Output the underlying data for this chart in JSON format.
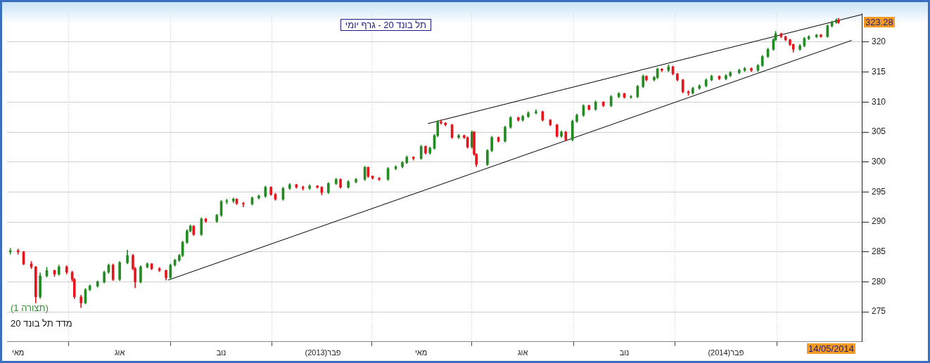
{
  "chart_data": {
    "type": "candlestick",
    "title": "תל בונד 20 - גרף יומי",
    "x": [
      "2012-04-24",
      "2012-05-01",
      "2012-05-06",
      "2012-05-13",
      "2012-05-17",
      "2012-05-21",
      "2012-05-27",
      "2012-06-03",
      "2012-06-07",
      "2012-06-14",
      "2012-06-19",
      "2012-06-21",
      "2012-06-27",
      "2012-07-01",
      "2012-07-05",
      "2012-07-12",
      "2012-07-18",
      "2012-07-22",
      "2012-07-26",
      "2012-08-01",
      "2012-08-08",
      "2012-08-13",
      "2012-08-15",
      "2012-08-20",
      "2012-08-26",
      "2012-08-30",
      "2012-09-06",
      "2012-09-12",
      "2012-09-16",
      "2012-09-20",
      "2012-09-24",
      "2012-09-27",
      "2012-10-01",
      "2012-10-04",
      "2012-10-07",
      "2012-10-14",
      "2012-10-18",
      "2012-10-28",
      "2012-11-01",
      "2012-11-06",
      "2012-11-12",
      "2012-11-15",
      "2012-11-21",
      "2012-11-29",
      "2012-12-05",
      "2012-12-11",
      "2012-12-16",
      "2012-12-20",
      "2012-12-27",
      "2013-01-02",
      "2013-01-08",
      "2013-01-14",
      "2013-01-20",
      "2013-01-27",
      "2013-01-31",
      "2013-02-06",
      "2013-02-13",
      "2013-02-17",
      "2013-02-24",
      "2013-03-03",
      "2013-03-11",
      "2013-03-14",
      "2013-03-18",
      "2013-03-24",
      "2013-04-01",
      "2013-04-08",
      "2013-04-14",
      "2013-04-18",
      "2013-04-24",
      "2013-05-01",
      "2013-05-05",
      "2013-05-09",
      "2013-05-13",
      "2013-05-16",
      "2013-05-19",
      "2013-05-23",
      "2013-05-29",
      "2013-06-04",
      "2013-06-09",
      "2013-06-12",
      "2013-06-16",
      "2013-06-18",
      "2013-06-20",
      "2013-06-30",
      "2013-07-04",
      "2013-07-10",
      "2013-07-16",
      "2013-07-21",
      "2013-07-28",
      "2013-08-01",
      "2013-08-06",
      "2013-08-13",
      "2013-08-19",
      "2013-08-26",
      "2013-09-01",
      "2013-09-05",
      "2013-09-09",
      "2013-09-15",
      "2013-09-19",
      "2013-09-25",
      "2013-09-30",
      "2013-10-06",
      "2013-10-13",
      "2013-10-20",
      "2013-10-27",
      "2013-11-01",
      "2013-11-07",
      "2013-11-13",
      "2013-11-18",
      "2013-11-21",
      "2013-11-28",
      "2013-12-01",
      "2013-12-05",
      "2013-12-11",
      "2013-12-15",
      "2013-12-19",
      "2013-12-24",
      "2013-12-29",
      "2014-01-02",
      "2014-01-08",
      "2014-01-14",
      "2014-01-19",
      "2014-01-26",
      "2014-02-01",
      "2014-02-05",
      "2014-02-13",
      "2014-02-18",
      "2014-02-24",
      "2014-03-02",
      "2014-03-06",
      "2014-03-11",
      "2014-03-16",
      "2014-03-18",
      "2014-03-23",
      "2014-03-27",
      "2014-03-31",
      "2014-04-03",
      "2014-04-09",
      "2014-04-13",
      "2014-04-17",
      "2014-04-24",
      "2014-04-28",
      "2014-05-04",
      "2014-05-08",
      "2014-05-12",
      "2014-05-14"
    ],
    "ohlc": [
      [
        285.0,
        285.6,
        284.6,
        285.2
      ],
      [
        285.2,
        285.5,
        284.6,
        285.0
      ],
      [
        285.0,
        285.1,
        282.8,
        283.0
      ],
      [
        283.0,
        283.4,
        282.2,
        282.5
      ],
      [
        282.5,
        282.6,
        276.5,
        277.5
      ],
      [
        277.5,
        281.5,
        277.2,
        281.0
      ],
      [
        281.0,
        282.4,
        280.8,
        281.9
      ],
      [
        281.9,
        282.0,
        280.9,
        281.3
      ],
      [
        281.3,
        282.8,
        281.1,
        282.5
      ],
      [
        282.5,
        282.7,
        281.3,
        281.6
      ],
      [
        281.6,
        281.8,
        280.1,
        280.4
      ],
      [
        280.4,
        280.6,
        277.2,
        277.5
      ],
      [
        277.5,
        277.8,
        275.7,
        276.5
      ],
      [
        276.5,
        278.9,
        276.3,
        278.7
      ],
      [
        278.7,
        279.5,
        278.5,
        279.3
      ],
      [
        279.3,
        280.2,
        279.1,
        280.0
      ],
      [
        280.0,
        281.8,
        279.8,
        281.6
      ],
      [
        281.6,
        283.0,
        281.4,
        282.8
      ],
      [
        282.8,
        283.0,
        280.2,
        280.4
      ],
      [
        280.4,
        283.4,
        280.2,
        283.2
      ],
      [
        283.2,
        285.3,
        283.0,
        284.4
      ],
      [
        284.4,
        284.6,
        282.0,
        282.2
      ],
      [
        282.2,
        282.4,
        279.0,
        280.0
      ],
      [
        280.0,
        282.7,
        279.8,
        282.5
      ],
      [
        282.5,
        283.2,
        282.3,
        283.0
      ],
      [
        283.0,
        283.1,
        282.0,
        282.2
      ],
      [
        282.2,
        282.4,
        281.7,
        281.9
      ],
      [
        281.9,
        282.0,
        280.3,
        280.7
      ],
      [
        280.7,
        283.0,
        280.5,
        282.8
      ],
      [
        282.8,
        283.8,
        282.6,
        283.6
      ],
      [
        283.6,
        284.6,
        283.4,
        284.4
      ],
      [
        284.4,
        286.8,
        284.2,
        286.6
      ],
      [
        286.6,
        288.7,
        286.4,
        288.5
      ],
      [
        288.5,
        289.5,
        288.3,
        289.3
      ],
      [
        289.3,
        289.4,
        287.7,
        287.9
      ],
      [
        287.9,
        290.7,
        287.7,
        290.5
      ],
      [
        290.5,
        290.6,
        289.9,
        290.1
      ],
      [
        290.1,
        291.3,
        289.9,
        291.1
      ],
      [
        291.1,
        293.6,
        290.9,
        293.4
      ],
      [
        293.4,
        293.8,
        293.0,
        293.5
      ],
      [
        293.5,
        294.0,
        293.2,
        293.8
      ],
      [
        293.8,
        293.9,
        292.9,
        293.1
      ],
      [
        293.1,
        293.3,
        292.5,
        293.0
      ],
      [
        293.0,
        294.2,
        292.8,
        294.0
      ],
      [
        294.0,
        294.5,
        293.8,
        294.3
      ],
      [
        294.3,
        296.0,
        294.1,
        295.8
      ],
      [
        295.8,
        295.9,
        294.4,
        294.6
      ],
      [
        294.6,
        294.8,
        293.6,
        293.8
      ],
      [
        293.8,
        295.8,
        293.6,
        295.6
      ],
      [
        295.6,
        296.4,
        295.4,
        296.2
      ],
      [
        296.2,
        296.3,
        295.6,
        295.8
      ],
      [
        295.8,
        296.0,
        295.3,
        295.6
      ],
      [
        295.6,
        296.2,
        295.4,
        296.0
      ],
      [
        296.0,
        296.1,
        295.6,
        295.8
      ],
      [
        295.8,
        295.9,
        294.5,
        294.9
      ],
      [
        294.9,
        296.6,
        294.7,
        296.4
      ],
      [
        296.4,
        297.3,
        296.2,
        297.1
      ],
      [
        297.1,
        297.2,
        295.6,
        295.8
      ],
      [
        295.8,
        296.9,
        295.6,
        296.7
      ],
      [
        296.7,
        297.3,
        296.5,
        297.1
      ],
      [
        297.1,
        299.3,
        296.9,
        299.1
      ],
      [
        299.1,
        299.2,
        297.4,
        297.6
      ],
      [
        297.6,
        297.7,
        297.1,
        297.3
      ],
      [
        297.3,
        297.4,
        296.9,
        297.1
      ],
      [
        297.1,
        299.1,
        296.9,
        298.9
      ],
      [
        298.9,
        299.4,
        298.7,
        299.2
      ],
      [
        299.2,
        300.1,
        299.0,
        299.9
      ],
      [
        299.9,
        301.0,
        299.7,
        300.8
      ],
      [
        300.8,
        300.9,
        300.3,
        300.6
      ],
      [
        300.6,
        302.8,
        300.4,
        302.6
      ],
      [
        302.6,
        302.7,
        301.3,
        301.5
      ],
      [
        301.5,
        302.5,
        301.3,
        302.3
      ],
      [
        302.3,
        304.6,
        302.1,
        304.4
      ],
      [
        304.4,
        306.9,
        304.2,
        306.7
      ],
      [
        306.7,
        307.0,
        306.3,
        306.5
      ],
      [
        306.5,
        306.6,
        306.0,
        306.2
      ],
      [
        306.2,
        306.3,
        303.9,
        304.1
      ],
      [
        304.1,
        304.6,
        303.9,
        304.4
      ],
      [
        304.4,
        304.5,
        303.9,
        304.1
      ],
      [
        304.1,
        304.2,
        302.3,
        302.5
      ],
      [
        302.5,
        305.2,
        302.3,
        305.0
      ],
      [
        305.0,
        305.1,
        301.1,
        301.3
      ],
      [
        301.3,
        301.4,
        299.2,
        299.6
      ],
      [
        299.6,
        302.1,
        299.4,
        301.9
      ],
      [
        301.9,
        304.3,
        301.7,
        304.1
      ],
      [
        304.1,
        304.2,
        303.3,
        303.5
      ],
      [
        303.5,
        306.0,
        303.3,
        305.8
      ],
      [
        305.8,
        307.6,
        305.6,
        307.4
      ],
      [
        307.4,
        307.5,
        306.8,
        307.0
      ],
      [
        307.0,
        307.8,
        306.8,
        307.6
      ],
      [
        307.6,
        308.4,
        307.4,
        308.2
      ],
      [
        308.2,
        308.7,
        308.0,
        308.4
      ],
      [
        308.4,
        308.5,
        306.8,
        307.0
      ],
      [
        307.0,
        307.1,
        306.0,
        306.2
      ],
      [
        306.2,
        306.3,
        304.1,
        304.3
      ],
      [
        304.3,
        305.2,
        304.1,
        305.0
      ],
      [
        305.0,
        305.1,
        303.5,
        303.7
      ],
      [
        303.7,
        307.0,
        303.5,
        306.8
      ],
      [
        306.8,
        308.0,
        306.6,
        307.8
      ],
      [
        307.8,
        309.6,
        307.6,
        309.4
      ],
      [
        309.4,
        309.5,
        308.6,
        308.8
      ],
      [
        308.8,
        310.2,
        308.6,
        310.0
      ],
      [
        310.0,
        310.1,
        309.2,
        309.4
      ],
      [
        309.4,
        311.1,
        309.2,
        310.9
      ],
      [
        310.9,
        311.6,
        310.7,
        311.4
      ],
      [
        311.4,
        311.5,
        310.6,
        310.8
      ],
      [
        310.8,
        311.1,
        310.6,
        310.9
      ],
      [
        310.9,
        312.8,
        310.7,
        312.6
      ],
      [
        312.6,
        314.5,
        312.4,
        314.3
      ],
      [
        314.3,
        314.4,
        313.5,
        313.7
      ],
      [
        313.7,
        314.3,
        313.5,
        314.1
      ],
      [
        314.1,
        315.7,
        313.9,
        315.5
      ],
      [
        315.5,
        315.6,
        315.1,
        315.3
      ],
      [
        315.3,
        316.2,
        315.1,
        315.9
      ],
      [
        315.9,
        316.0,
        314.5,
        314.7
      ],
      [
        314.7,
        314.8,
        313.5,
        313.7
      ],
      [
        313.7,
        313.8,
        311.5,
        311.7
      ],
      [
        311.7,
        311.9,
        311.1,
        311.5
      ],
      [
        311.5,
        312.5,
        311.3,
        312.3
      ],
      [
        312.3,
        312.9,
        312.1,
        312.7
      ],
      [
        312.7,
        313.9,
        312.5,
        313.7
      ],
      [
        313.7,
        314.5,
        313.5,
        314.3
      ],
      [
        314.3,
        314.4,
        313.7,
        313.9
      ],
      [
        313.9,
        314.6,
        313.7,
        314.4
      ],
      [
        314.4,
        315.1,
        314.2,
        314.9
      ],
      [
        314.9,
        315.5,
        314.7,
        315.3
      ],
      [
        315.3,
        315.8,
        315.1,
        315.6
      ],
      [
        315.6,
        315.7,
        315.1,
        315.3
      ],
      [
        315.3,
        316.3,
        315.1,
        316.1
      ],
      [
        316.1,
        317.8,
        315.9,
        317.6
      ],
      [
        317.6,
        319.0,
        317.4,
        318.8
      ],
      [
        318.8,
        320.6,
        318.6,
        320.4
      ],
      [
        320.4,
        321.8,
        320.2,
        321.4
      ],
      [
        321.4,
        321.5,
        320.7,
        320.9
      ],
      [
        320.9,
        321.0,
        320.2,
        320.4
      ],
      [
        320.4,
        320.5,
        319.4,
        319.6
      ],
      [
        319.6,
        319.7,
        318.3,
        318.8
      ],
      [
        318.8,
        319.6,
        318.6,
        319.4
      ],
      [
        319.4,
        320.8,
        319.2,
        320.6
      ],
      [
        320.6,
        321.1,
        320.4,
        320.9
      ],
      [
        320.9,
        321.3,
        320.7,
        321.2
      ],
      [
        321.2,
        321.3,
        320.8,
        320.9
      ],
      [
        320.9,
        322.9,
        320.8,
        322.7
      ],
      [
        322.7,
        323.5,
        322.5,
        323.3
      ],
      [
        323.3,
        323.9,
        323.1,
        323.7
      ],
      [
        323.7,
        324.0,
        323.1,
        323.28
      ]
    ],
    "colors": [
      "#228b22",
      "#e8141c",
      "#e8141c",
      "#e8141c",
      "#e8141c",
      "#228b22",
      "#228b22",
      "#e8141c",
      "#228b22",
      "#e8141c",
      "#e8141c",
      "#e8141c",
      "#e8141c",
      "#228b22",
      "#228b22",
      "#228b22",
      "#228b22",
      "#228b22",
      "#e8141c",
      "#228b22",
      "#228b22",
      "#e8141c",
      "#e8141c",
      "#228b22",
      "#228b22",
      "#e8141c",
      "#e8141c",
      "#e8141c",
      "#228b22",
      "#228b22",
      "#228b22",
      "#228b22",
      "#228b22",
      "#228b22",
      "#e8141c",
      "#228b22",
      "#e8141c",
      "#228b22",
      "#228b22",
      "#228b22",
      "#228b22",
      "#e8141c",
      "#e8141c",
      "#228b22",
      "#228b22",
      "#228b22",
      "#e8141c",
      "#e8141c",
      "#228b22",
      "#228b22",
      "#e8141c",
      "#e8141c",
      "#228b22",
      "#e8141c",
      "#e8141c",
      "#228b22",
      "#228b22",
      "#e8141c",
      "#228b22",
      "#228b22",
      "#228b22",
      "#e8141c",
      "#e8141c",
      "#e8141c",
      "#228b22",
      "#228b22",
      "#228b22",
      "#228b22",
      "#e8141c",
      "#228b22",
      "#e8141c",
      "#228b22",
      "#228b22",
      "#228b22",
      "#e8141c",
      "#e8141c",
      "#e8141c",
      "#228b22",
      "#e8141c",
      "#e8141c",
      "#228b22",
      "#e8141c",
      "#e8141c",
      "#228b22",
      "#228b22",
      "#e8141c",
      "#228b22",
      "#228b22",
      "#e8141c",
      "#228b22",
      "#228b22",
      "#228b22",
      "#e8141c",
      "#e8141c",
      "#e8141c",
      "#228b22",
      "#e8141c",
      "#228b22",
      "#228b22",
      "#228b22",
      "#e8141c",
      "#228b22",
      "#e8141c",
      "#228b22",
      "#228b22",
      "#e8141c",
      "#228b22",
      "#228b22",
      "#228b22",
      "#e8141c",
      "#228b22",
      "#228b22",
      "#e8141c",
      "#228b22",
      "#e8141c",
      "#e8141c",
      "#e8141c",
      "#e8141c",
      "#228b22",
      "#228b22",
      "#228b22",
      "#228b22",
      "#e8141c",
      "#228b22",
      "#228b22",
      "#228b22",
      "#228b22",
      "#e8141c",
      "#228b22",
      "#228b22",
      "#228b22",
      "#228b22",
      "#228b22",
      "#e8141c",
      "#e8141c",
      "#e8141c",
      "#e8141c",
      "#228b22",
      "#228b22",
      "#228b22",
      "#228b22",
      "#e8141c",
      "#228b22",
      "#228b22",
      "#228b22",
      "#e8141c"
    ],
    "series": [
      {
        "type": "line",
        "color": "#000000",
        "x": [
          "2012-09-14",
          "2014-05-26"
        ],
        "values": [
          280.3,
          320.3
        ]
      },
      {
        "type": "line",
        "color": "#000000",
        "x": [
          "2013-05-07",
          "2014-06-04"
        ],
        "values": [
          306.4,
          324.6
        ]
      }
    ],
    "xlim": [
      "2012-04-21",
      "2014-06-04"
    ],
    "xticks": [
      {
        "value": "2012-05-01",
        "label": "מאי"
      },
      {
        "value": "2012-08-01",
        "label": "אוג"
      },
      {
        "value": "2012-11-01",
        "label": "נוב"
      },
      {
        "value": "2013-02-01",
        "label": "פבר(2013)"
      },
      {
        "value": "2013-05-01",
        "label": "מאי"
      },
      {
        "value": "2013-08-01",
        "label": "אוג"
      },
      {
        "value": "2013-11-01",
        "label": "נוב"
      },
      {
        "value": "2014-02-01",
        "label": "פבר(2014)"
      }
    ],
    "ylim": [
      270,
      324.8
    ],
    "yticks": [
      275,
      280,
      285,
      290,
      295,
      300,
      305,
      310,
      315,
      320
    ],
    "grid": true,
    "marker": "none",
    "annotations": [
      "(תצורה 1)",
      "מדד תל בונד 20",
      {
        "text": "323.28",
        "y": 323.28
      },
      "14/05/2014"
    ]
  }
}
